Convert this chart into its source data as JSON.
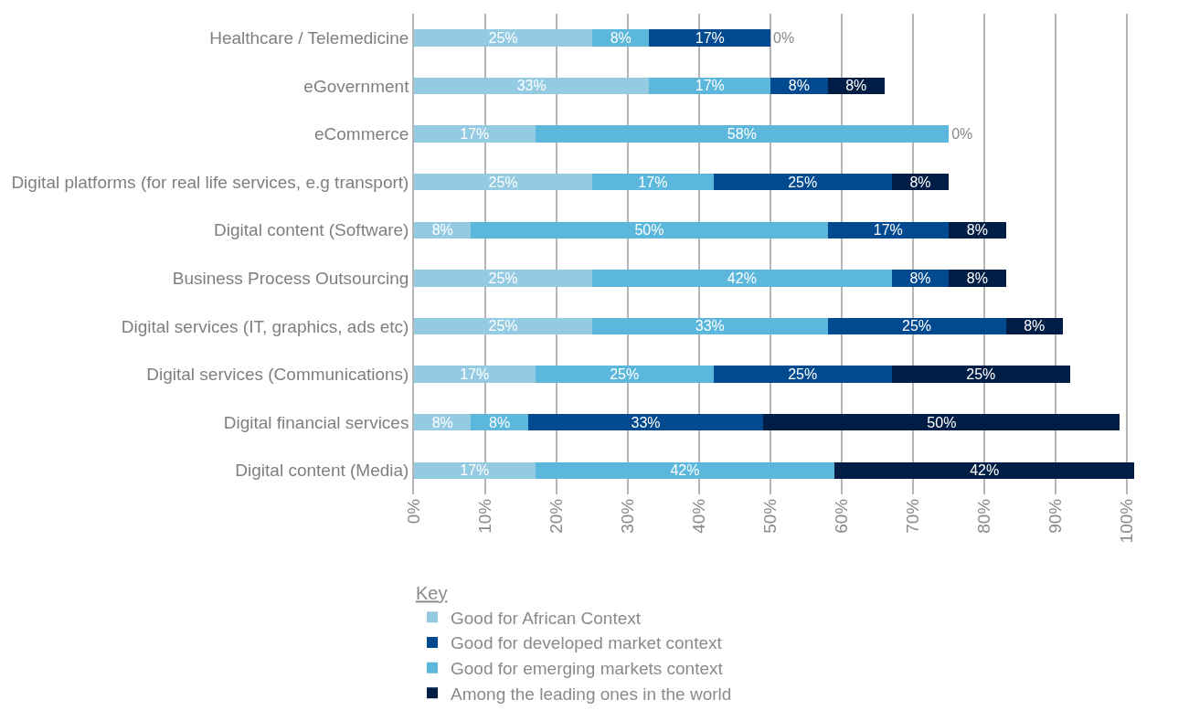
{
  "chart_data": {
    "type": "bar",
    "orientation": "horizontal",
    "stacked": true,
    "categories": [
      "Healthcare / Telemedicine",
      "eGovernment",
      "eCommerce",
      "Digital platforms (for real life services, e.g transport)",
      "Digital content (Software)",
      "Business Process Outsourcing",
      "Digital services (IT, graphics, ads etc)",
      "Digital services (Communications)",
      "Digital financial services",
      "Digital content (Media)"
    ],
    "series": [
      {
        "name": "Good for African Context",
        "color": "#95cbe2",
        "values": [
          25,
          33,
          17,
          25,
          8,
          25,
          25,
          17,
          8,
          17
        ],
        "value_labels": [
          "25%",
          "33%",
          "17%",
          "25%",
          "8%",
          "25%",
          "25%",
          "17%",
          "8%",
          "17%"
        ]
      },
      {
        "name": "Good for emerging markets context",
        "color": "#5bb7dc",
        "values": [
          8,
          17,
          58,
          17,
          50,
          42,
          33,
          25,
          8,
          42
        ],
        "value_labels": [
          "8%",
          "17%",
          "58%",
          "17%",
          "50%",
          "42%",
          "33%",
          "25%",
          "8%",
          "42%"
        ]
      },
      {
        "name": "Good for developed market context",
        "color": "#014a8f",
        "values": [
          17,
          8,
          null,
          25,
          17,
          8,
          25,
          25,
          33,
          null
        ],
        "value_labels": [
          "17%",
          "8%",
          null,
          "25%",
          "17%",
          "8%",
          "25%",
          "25%",
          "33%",
          null
        ]
      },
      {
        "name": "Among the leading ones in the world",
        "color": "#001d45",
        "values": [
          0,
          8,
          0,
          8,
          8,
          8,
          8,
          25,
          50,
          42
        ],
        "value_labels": [
          "0%",
          "8%",
          "0%",
          "8%",
          "8%",
          "8%",
          "8%",
          "25%",
          "50%",
          "42%"
        ]
      }
    ],
    "xlim": [
      0,
      101
    ],
    "xticks": [
      {
        "value": 0,
        "label": "0%"
      },
      {
        "value": 10,
        "label": "10%"
      },
      {
        "value": 20,
        "label": "20%"
      },
      {
        "value": 30,
        "label": "30%"
      },
      {
        "value": 40,
        "label": "40%"
      },
      {
        "value": 50,
        "label": "50%"
      },
      {
        "value": 60,
        "label": "60%"
      },
      {
        "value": 70,
        "label": "70%"
      },
      {
        "value": 80,
        "label": "80%"
      },
      {
        "value": 90,
        "label": "90%"
      },
      {
        "value": 100,
        "label": "100%"
      }
    ],
    "grid": "x",
    "legend": "bottom",
    "legend_title": "Key"
  }
}
